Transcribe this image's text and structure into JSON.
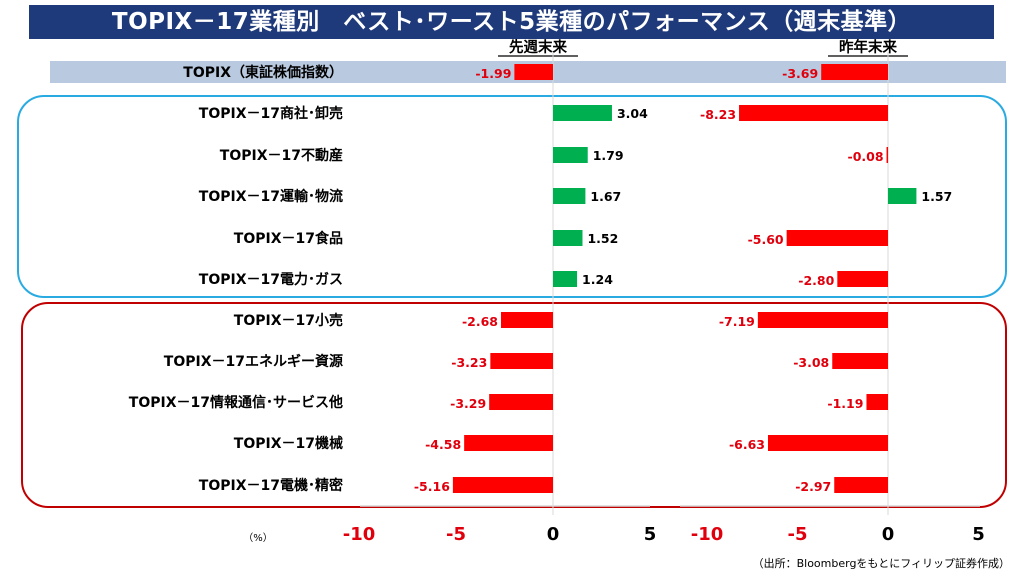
{
  "title": "TOPIX－17業種別　ベスト･ワースト5業種のパフォーマンス（週末基準）",
  "unit_label": "（%）",
  "source": "（出所：Bloombergをもとにフィリップ証券作成）",
  "colors": {
    "positive": "#00b050",
    "negative": "#ff0000",
    "negative_label": "#e0000d",
    "header_band": "#b9c9df",
    "best_border": "#29abe2",
    "worst_border": "#c00000"
  },
  "chart_data": [
    {
      "type": "bar",
      "orientation": "horizontal",
      "title": "先週末来",
      "xlim": [
        -10,
        5
      ],
      "xticks": [
        -10,
        -5,
        0,
        5
      ],
      "categories": [
        "TOPIX（東証株価指数）",
        "TOPIX－17商社･卸売",
        "TOPIX－17不動産",
        "TOPIX－17運輸･物流",
        "TOPIX－17食品",
        "TOPIX－17電力･ガス",
        "TOPIX－17小売",
        "TOPIX－17エネルギー資源",
        "TOPIX－17情報通信･サービス他",
        "TOPIX－17機械",
        "TOPIX－17電機･精密"
      ],
      "values": [
        -1.99,
        3.04,
        1.79,
        1.67,
        1.52,
        1.24,
        -2.68,
        -3.23,
        -3.29,
        -4.58,
        -5.16
      ],
      "labels": [
        "-1.99",
        "3.04",
        "1.79",
        "1.67",
        "1.52",
        "1.24",
        "-2.68",
        "-3.23",
        "-3.29",
        "-4.58",
        "-5.16"
      ]
    },
    {
      "type": "bar",
      "orientation": "horizontal",
      "title": "昨年末来",
      "xlim": [
        -10,
        5
      ],
      "xticks": [
        -10,
        -5,
        0,
        5
      ],
      "categories": [
        "TOPIX（東証株価指数）",
        "TOPIX－17商社･卸売",
        "TOPIX－17不動産",
        "TOPIX－17運輸･物流",
        "TOPIX－17食品",
        "TOPIX－17電力･ガス",
        "TOPIX－17小売",
        "TOPIX－17エネルギー資源",
        "TOPIX－17情報通信･サービス他",
        "TOPIX－17機械",
        "TOPIX－17電機･精密"
      ],
      "values": [
        -3.69,
        -8.23,
        -0.08,
        1.57,
        -5.6,
        -2.8,
        -7.19,
        -3.08,
        -1.19,
        -6.63,
        -2.97
      ],
      "labels": [
        "-3.69",
        "-8.23",
        "-0.08",
        "1.57",
        "-5.60",
        "-2.80",
        "-7.19",
        "-3.08",
        "-1.19",
        "-6.63",
        "-2.97"
      ]
    }
  ]
}
